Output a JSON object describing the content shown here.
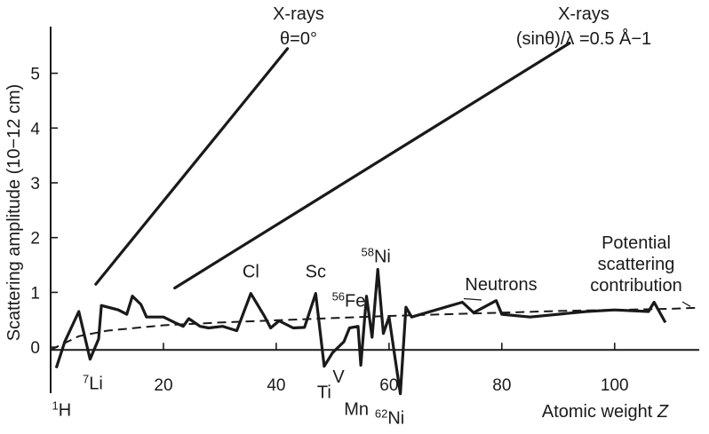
{
  "chart_data": {
    "type": "line",
    "xlabel": "Atomic weight Z",
    "ylabel": "Scattering amplitude (10−12 cm)",
    "xlim": [
      0,
      115
    ],
    "ylim": [
      -0.5,
      5.9
    ],
    "x_ticks": [
      20,
      40,
      60,
      80,
      100
    ],
    "y_ticks": [
      0,
      1,
      2,
      3,
      4,
      5
    ],
    "grid": false,
    "series": [
      {
        "name": "X-rays θ=0°",
        "label_lines": [
          "X-rays",
          "θ=0°"
        ],
        "points": [
          [
            8,
            1.15
          ],
          [
            42,
            5.45
          ]
        ]
      },
      {
        "name": "X-rays (sinθ)/λ =0.5 Å−1",
        "label_lines": [
          "X-rays",
          "(sinθ)/λ =0.5 Å−1"
        ],
        "points": [
          [
            22,
            1.08
          ],
          [
            92,
            5.55
          ]
        ]
      },
      {
        "name": "Neutrons",
        "label_lines": [
          "Neutrons"
        ],
        "points": [
          [
            1,
            -0.38
          ],
          [
            2.5,
            0.1
          ],
          [
            5,
            0.65
          ],
          [
            7,
            -0.22
          ],
          [
            8.5,
            0.15
          ],
          [
            9,
            0.76
          ],
          [
            12,
            0.68
          ],
          [
            13.5,
            0.6
          ],
          [
            14.5,
            0.93
          ],
          [
            16,
            0.78
          ],
          [
            17,
            0.55
          ],
          [
            20,
            0.55
          ],
          [
            22,
            0.45
          ],
          [
            23.5,
            0.38
          ],
          [
            24.5,
            0.52
          ],
          [
            26.5,
            0.38
          ],
          [
            28,
            0.35
          ],
          [
            30.5,
            0.38
          ],
          [
            33,
            0.3
          ],
          [
            35.5,
            0.98
          ],
          [
            38,
            0.55
          ],
          [
            39,
            0.35
          ],
          [
            40.5,
            0.48
          ],
          [
            43,
            0.35
          ],
          [
            45,
            0.36
          ],
          [
            47,
            0.98
          ],
          [
            48.5,
            -0.35
          ],
          [
            50,
            -0.1
          ],
          [
            52,
            0.1
          ],
          [
            53,
            0.35
          ],
          [
            54.5,
            0.38
          ],
          [
            55,
            -0.33
          ],
          [
            56,
            0.93
          ],
          [
            57,
            0.18
          ],
          [
            58,
            1.42
          ],
          [
            59,
            0.25
          ],
          [
            60,
            0.55
          ],
          [
            61,
            -0.15
          ],
          [
            62,
            -0.85
          ],
          [
            63,
            0.73
          ],
          [
            64,
            0.55
          ],
          [
            73,
            0.82
          ],
          [
            75,
            0.63
          ],
          [
            79,
            0.85
          ],
          [
            80,
            0.6
          ],
          [
            85,
            0.55
          ],
          [
            95,
            0.65
          ],
          [
            100,
            0.68
          ],
          [
            106,
            0.65
          ],
          [
            107,
            0.82
          ],
          [
            109,
            0.45
          ]
        ]
      },
      {
        "name": "Potential scattering contribution",
        "label_lines": [
          "Potential",
          "scattering",
          "contribution"
        ],
        "style": "dashed",
        "points": [
          [
            0,
            -0.05
          ],
          [
            5,
            0.2
          ],
          [
            10,
            0.3
          ],
          [
            20,
            0.4
          ],
          [
            30,
            0.45
          ],
          [
            40,
            0.49
          ],
          [
            50,
            0.53
          ],
          [
            60,
            0.57
          ],
          [
            70,
            0.6
          ],
          [
            80,
            0.63
          ],
          [
            90,
            0.66
          ],
          [
            100,
            0.68
          ],
          [
            110,
            0.7
          ],
          [
            115,
            0.72
          ]
        ]
      }
    ],
    "annotations": [
      {
        "base": "H",
        "sup": "1",
        "x": 1,
        "y": -0.38
      },
      {
        "base": "Li",
        "sup": "7",
        "x": 7,
        "y": -0.22
      },
      {
        "base": "Cl",
        "sup": "",
        "x": 35.5,
        "y": 0.98
      },
      {
        "base": "Sc",
        "sup": "",
        "x": 47,
        "y": 0.98
      },
      {
        "base": "Ti",
        "sup": "",
        "x": 48.5,
        "y": -0.35
      },
      {
        "base": "V",
        "sup": "",
        "x": 52,
        "y": 0.1
      },
      {
        "base": "Mn",
        "sup": "",
        "x": 55,
        "y": -0.33
      },
      {
        "base": "Fe",
        "sup": "56",
        "x": 56,
        "y": 0.93
      },
      {
        "base": "Ni",
        "sup": "58",
        "x": 58,
        "y": 1.42
      },
      {
        "base": "Ni",
        "sup": "62",
        "x": 62,
        "y": -0.85
      }
    ]
  }
}
